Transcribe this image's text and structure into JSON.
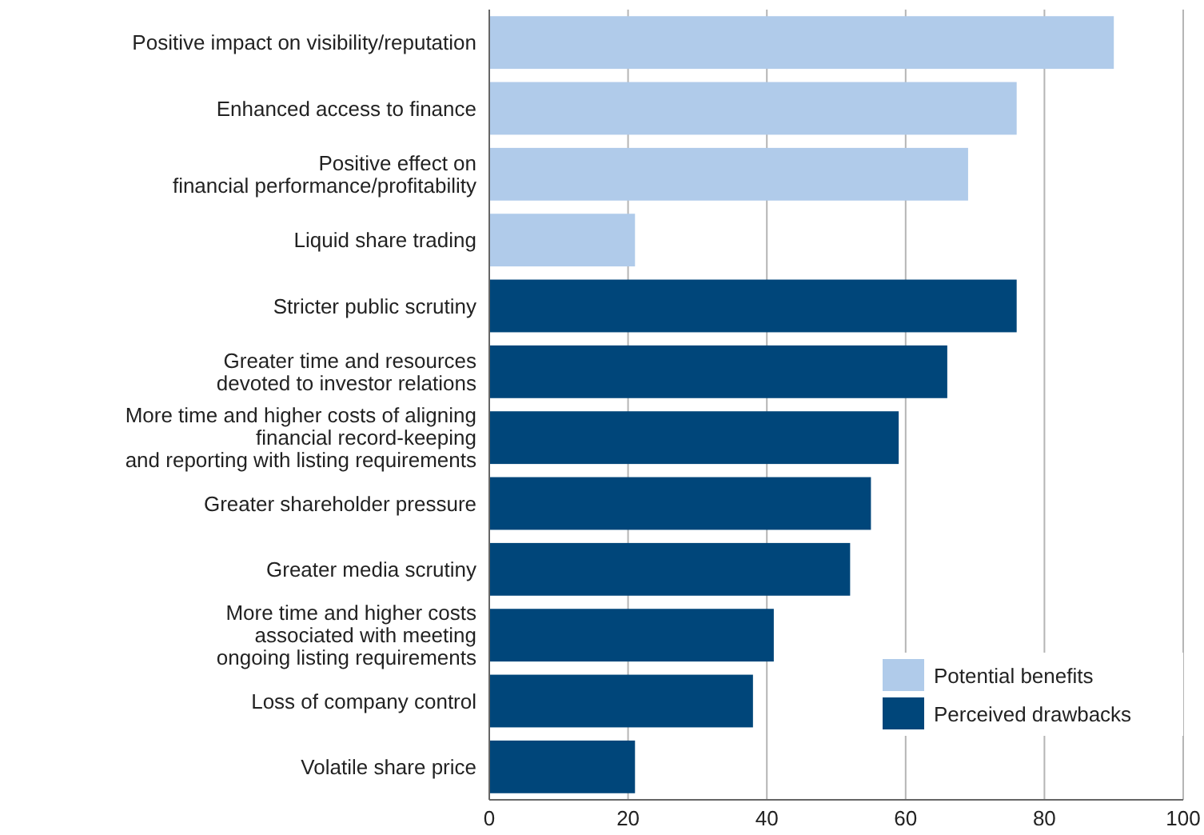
{
  "chart_data": {
    "type": "bar",
    "orientation": "horizontal",
    "categories": [
      "Positive impact on visibility/reputation",
      "Enhanced access to finance",
      "Positive effect on\nfinancial performance/profitability",
      "Liquid share trading",
      "Stricter public scrutiny",
      "Greater time and resources\ndevoted to investor relations",
      "More time and higher costs of aligning\nfinancial record-keeping\nand reporting with listing requirements",
      "Greater shareholder pressure",
      "Greater media scrutiny",
      "More time and higher costs\nassociated with meeting\nongoing listing requirements",
      "Loss of company control",
      "Volatile share price"
    ],
    "series": [
      {
        "name": "Potential benefits",
        "color": "#b0cbea",
        "values": [
          90,
          76,
          69,
          21,
          null,
          null,
          null,
          null,
          null,
          null,
          null,
          null
        ]
      },
      {
        "name": "Perceived drawbacks",
        "color": "#00467a",
        "values": [
          null,
          null,
          null,
          null,
          76,
          66,
          59,
          55,
          52,
          41,
          38,
          21
        ]
      }
    ],
    "xlim": [
      0,
      100
    ],
    "xticks": [
      0,
      20,
      40,
      60,
      80,
      100
    ],
    "grid": "x",
    "legend": "bottom right"
  }
}
